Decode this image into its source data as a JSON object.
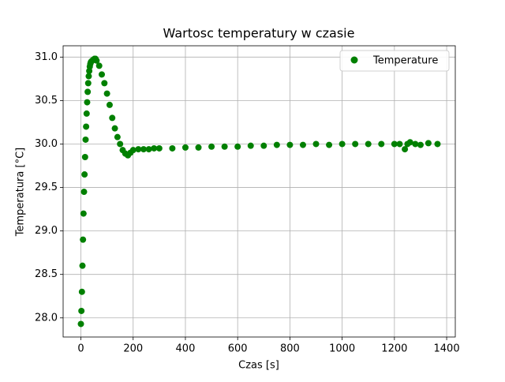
{
  "chart_data": {
    "type": "scatter",
    "title": "Wartosc temperatury w czasie",
    "x_label": "Czas [s]",
    "y_label": "Temperatura [°C]",
    "series": [
      {
        "name": "Temperature",
        "color": "#008000",
        "x": [
          0,
          2,
          4,
          6,
          8,
          10,
          12,
          14,
          16,
          18,
          20,
          22,
          24,
          26,
          28,
          30,
          32,
          34,
          36,
          38,
          40,
          44,
          48,
          52,
          56,
          60,
          70,
          80,
          90,
          100,
          110,
          120,
          130,
          140,
          150,
          160,
          170,
          180,
          190,
          200,
          220,
          240,
          260,
          280,
          300,
          350,
          400,
          450,
          500,
          550,
          600,
          650,
          700,
          750,
          800,
          850,
          900,
          950,
          1000,
          1050,
          1100,
          1150,
          1200,
          1220,
          1240,
          1250,
          1260,
          1280,
          1300,
          1330,
          1365
        ],
        "values": [
          27.93,
          28.08,
          28.3,
          28.6,
          28.9,
          29.2,
          29.45,
          29.65,
          29.85,
          30.05,
          30.2,
          30.35,
          30.48,
          30.6,
          30.7,
          30.78,
          30.84,
          30.89,
          30.92,
          30.94,
          30.95,
          30.96,
          30.97,
          30.98,
          30.98,
          30.96,
          30.9,
          30.8,
          30.7,
          30.58,
          30.45,
          30.3,
          30.18,
          30.08,
          30.0,
          29.93,
          29.89,
          29.87,
          29.9,
          29.93,
          29.94,
          29.94,
          29.94,
          29.95,
          29.95,
          29.95,
          29.96,
          29.96,
          29.97,
          29.97,
          29.97,
          29.98,
          29.98,
          29.99,
          29.99,
          29.99,
          30.0,
          29.99,
          30.0,
          30.0,
          30.0,
          30.0,
          30.0,
          30.0,
          29.94,
          30.0,
          30.02,
          30.0,
          29.99,
          30.01,
          30.0
        ]
      }
    ],
    "xlim": [
      -68,
      1433
    ],
    "xticks": [
      0,
      200,
      400,
      600,
      800,
      1000,
      1200,
      1400
    ],
    "ylim": [
      27.78,
      31.13
    ],
    "yticks": [
      {
        "value": 28,
        "label": "28.0"
      },
      28.5,
      {
        "value": 29,
        "label": "29.0"
      },
      29.5,
      {
        "value": 30,
        "label": "30.0"
      },
      30.5,
      {
        "value": 31,
        "label": "31.0"
      }
    ],
    "grid": true,
    "legend": "upper right"
  }
}
